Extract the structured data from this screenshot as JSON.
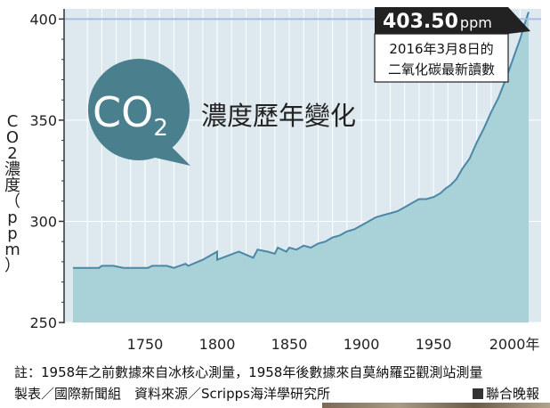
{
  "chart_data": {
    "type": "area",
    "title_main": "CO",
    "title_sub": "2",
    "title_text": "濃度歷年變化",
    "ylabel": "CO2濃度（ppm）",
    "ylim": [
      250,
      405
    ],
    "xlim": [
      1700,
      2016
    ],
    "yticks": [
      250,
      300,
      350,
      400
    ],
    "xticks": [
      1750,
      1800,
      1850,
      1900,
      1950,
      2000
    ],
    "xtick_labels": [
      "1750",
      "1800",
      "1850",
      "1900",
      "1950",
      "2000年"
    ],
    "reference_line": 400,
    "x": [
      1700,
      1718,
      1720,
      1728,
      1735,
      1740,
      1752,
      1755,
      1765,
      1770,
      1778,
      1780,
      1790,
      1800,
      1800,
      1815,
      1825,
      1828,
      1835,
      1840,
      1842,
      1848,
      1850,
      1855,
      1860,
      1865,
      1870,
      1875,
      1880,
      1885,
      1890,
      1895,
      1900,
      1905,
      1910,
      1915,
      1920,
      1925,
      1930,
      1935,
      1940,
      1945,
      1950,
      1955,
      1958,
      1962,
      1966,
      1970,
      1975,
      1980,
      1985,
      1990,
      1995,
      2000,
      2005,
      2010,
      2013,
      2016
    ],
    "y": [
      277,
      277,
      278,
      278,
      277,
      277,
      277,
      278,
      278,
      277,
      279,
      278,
      281,
      285,
      281,
      285,
      282,
      286,
      285,
      284,
      287,
      285,
      287,
      286,
      288,
      287,
      289,
      290,
      292,
      293,
      295,
      296,
      298,
      300,
      302,
      303,
      304,
      305,
      307,
      309,
      311,
      311,
      312,
      314,
      316,
      318,
      321,
      326,
      331,
      339,
      346,
      354,
      361,
      370,
      380,
      390,
      397,
      403.5
    ],
    "annotation": {
      "value": "403.50",
      "unit": "ppm",
      "line1": "2016年3月8日的",
      "line2": "二氧化碳最新讀數"
    }
  },
  "footer": {
    "note": "註：1958年之前數據來自冰核心測量，1958年後數據來自莫納羅亞觀測站測量",
    "credit": "製表／國際新聞組　資料來源／Scripps海洋學研究所",
    "brand": "聯合晚報"
  },
  "colors": {
    "background": "#dde9ef",
    "fill": "#a9d1d8",
    "line": "#4b87a6",
    "ref_line": "#a9bde0",
    "bubble": "#4a7f8e",
    "label_box": "#222222"
  }
}
